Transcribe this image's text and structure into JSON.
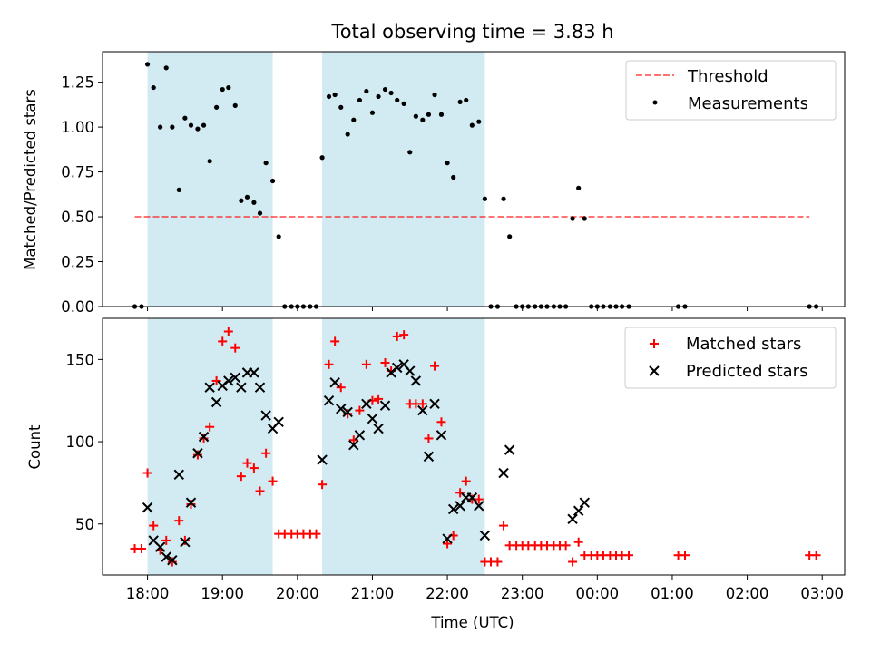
{
  "figure": {
    "title": "Total observing time = 3.83 h",
    "xlabel": "Time (UTC)"
  },
  "colors": {
    "band": "#add8e6",
    "threshold": "#ff0000",
    "measurements": "#000000",
    "matched": "#ff0000",
    "predicted": "#000000"
  },
  "chart_data": [
    {
      "type": "scatter",
      "title": "Total observing time = 3.83 h",
      "xlabel": "",
      "ylabel": "Matched/Predicted stars",
      "x_unit": "hours since 18:00 UTC",
      "xlim": [
        -0.6,
        9.3
      ],
      "ylim": [
        0,
        1.42
      ],
      "xticks": [
        0,
        1,
        2,
        3,
        4,
        5,
        6,
        7,
        8,
        9
      ],
      "xtick_labels": [
        "18:00",
        "19:00",
        "20:00",
        "21:00",
        "22:00",
        "23:00",
        "00:00",
        "01:00",
        "02:00",
        "03:00"
      ],
      "yticks": [
        0,
        0.25,
        0.5,
        0.75,
        1.0,
        1.25
      ],
      "ytick_labels": [
        "0.00",
        "0.25",
        "0.50",
        "0.75",
        "1.00",
        "1.25"
      ],
      "shaded_intervals": [
        [
          0.0,
          1.67
        ],
        [
          2.33,
          4.5
        ]
      ],
      "legend_position": "upper right",
      "grid": false,
      "series": [
        {
          "name": "Threshold",
          "style": "dashed-line",
          "x": [
            -0.17,
            8.83
          ],
          "y": [
            0.5,
            0.5
          ]
        },
        {
          "name": "Measurements",
          "style": "dot",
          "x": [
            -0.17,
            -0.08,
            0.0,
            0.08,
            0.17,
            0.25,
            0.33,
            0.42,
            0.5,
            0.58,
            0.67,
            0.75,
            0.83,
            0.92,
            1.0,
            1.08,
            1.17,
            1.25,
            1.33,
            1.42,
            1.5,
            1.58,
            1.67,
            1.75,
            1.83,
            1.92,
            2.0,
            2.08,
            2.17,
            2.25,
            2.33,
            2.42,
            2.5,
            2.58,
            2.67,
            2.75,
            2.83,
            2.92,
            3.0,
            3.08,
            3.17,
            3.25,
            3.33,
            3.42,
            3.5,
            3.58,
            3.67,
            3.75,
            3.83,
            3.92,
            4.0,
            4.08,
            4.17,
            4.25,
            4.33,
            4.42,
            4.5,
            4.58,
            4.67,
            4.75,
            4.83,
            4.92,
            5.0,
            5.08,
            5.17,
            5.25,
            5.33,
            5.42,
            5.5,
            5.58,
            5.67,
            5.75,
            5.83,
            5.92,
            6.0,
            6.08,
            6.17,
            6.25,
            6.33,
            6.42,
            7.08,
            7.17,
            8.83,
            8.92
          ],
          "y": [
            0.0,
            0.0,
            1.35,
            1.22,
            1.0,
            1.33,
            1.0,
            0.65,
            1.05,
            1.01,
            0.99,
            1.01,
            0.81,
            1.11,
            1.21,
            1.22,
            1.12,
            0.59,
            0.61,
            0.58,
            0.52,
            0.8,
            0.7,
            0.39,
            0.0,
            0.0,
            0.0,
            0.0,
            0.0,
            0.0,
            0.83,
            1.17,
            1.18,
            1.11,
            0.96,
            1.04,
            1.15,
            1.2,
            1.08,
            1.17,
            1.21,
            1.19,
            1.15,
            1.13,
            0.86,
            1.06,
            1.04,
            1.07,
            1.18,
            1.07,
            0.8,
            0.72,
            1.14,
            1.15,
            1.01,
            1.03,
            0.6,
            0.0,
            0.0,
            0.6,
            0.39,
            0.0,
            0.0,
            0.0,
            0.0,
            0.0,
            0.0,
            0.0,
            0.0,
            0.0,
            0.49,
            0.66,
            0.49,
            0.0,
            0.0,
            0.0,
            0.0,
            0.0,
            0.0,
            0.0,
            0.0,
            0.0,
            0.0,
            0.0
          ]
        }
      ]
    },
    {
      "type": "scatter",
      "title": "",
      "xlabel": "Time (UTC)",
      "ylabel": "Count",
      "x_unit": "hours since 18:00 UTC",
      "xlim": [
        -0.6,
        9.3
      ],
      "ylim": [
        19,
        175
      ],
      "xticks": [
        0,
        1,
        2,
        3,
        4,
        5,
        6,
        7,
        8,
        9
      ],
      "xtick_labels": [
        "18:00",
        "19:00",
        "20:00",
        "21:00",
        "22:00",
        "23:00",
        "00:00",
        "01:00",
        "02:00",
        "03:00"
      ],
      "yticks": [
        50,
        100,
        150
      ],
      "ytick_labels": [
        "50",
        "100",
        "150"
      ],
      "shaded_intervals": [
        [
          0.0,
          1.67
        ],
        [
          2.33,
          4.5
        ]
      ],
      "legend_position": "upper right",
      "grid": false,
      "series": [
        {
          "name": "Matched stars",
          "marker": "plus",
          "x": [
            -0.17,
            -0.08,
            0.0,
            0.08,
            0.17,
            0.25,
            0.33,
            0.42,
            0.5,
            0.58,
            0.67,
            0.75,
            0.83,
            0.92,
            1.0,
            1.08,
            1.17,
            1.25,
            1.33,
            1.42,
            1.5,
            1.58,
            1.67,
            1.75,
            1.83,
            1.92,
            2.0,
            2.08,
            2.17,
            2.25,
            2.33,
            2.42,
            2.5,
            2.58,
            2.67,
            2.75,
            2.83,
            2.92,
            3.0,
            3.08,
            3.17,
            3.25,
            3.33,
            3.42,
            3.5,
            3.58,
            3.67,
            3.75,
            3.83,
            3.92,
            4.0,
            4.08,
            4.17,
            4.25,
            4.33,
            4.42,
            4.5,
            4.58,
            4.67,
            4.75,
            4.83,
            4.92,
            5.0,
            5.08,
            5.17,
            5.25,
            5.33,
            5.42,
            5.5,
            5.58,
            5.67,
            5.75,
            5.83,
            5.92,
            6.0,
            6.08,
            6.17,
            6.25,
            6.33,
            6.42,
            7.08,
            7.17,
            8.83,
            8.92
          ],
          "y": [
            35,
            35,
            81,
            49,
            34,
            40,
            27,
            52,
            40,
            62,
            92,
            102,
            109,
            137,
            161,
            167,
            157,
            79,
            87,
            84,
            70,
            93,
            76,
            44,
            44,
            44,
            44,
            44,
            44,
            44,
            74,
            147,
            161,
            133,
            117,
            101,
            119,
            147,
            125,
            126,
            148,
            143,
            164,
            165,
            123,
            123,
            123,
            102,
            146,
            112,
            38,
            43,
            69,
            76,
            65,
            65,
            27,
            27,
            27,
            49,
            37,
            37,
            37,
            37,
            37,
            37,
            37,
            37,
            37,
            37,
            27,
            39,
            31,
            31,
            31,
            31,
            31,
            31,
            31,
            31,
            31,
            31,
            31,
            31
          ]
        },
        {
          "name": "Predicted stars",
          "marker": "x",
          "x": [
            0.0,
            0.08,
            0.17,
            0.25,
            0.33,
            0.42,
            0.5,
            0.58,
            0.67,
            0.75,
            0.83,
            0.92,
            1.0,
            1.08,
            1.17,
            1.25,
            1.33,
            1.42,
            1.5,
            1.58,
            1.67,
            1.75,
            2.33,
            2.42,
            2.5,
            2.58,
            2.67,
            2.75,
            2.83,
            2.92,
            3.0,
            3.08,
            3.17,
            3.25,
            3.33,
            3.42,
            3.5,
            3.58,
            3.67,
            3.75,
            3.83,
            3.92,
            4.0,
            4.08,
            4.17,
            4.25,
            4.33,
            4.42,
            4.5,
            4.75,
            4.83,
            5.67,
            5.75,
            5.83
          ],
          "y": [
            60,
            40,
            36,
            30,
            28,
            80,
            39,
            63,
            93,
            103,
            133,
            124,
            134,
            137,
            139,
            133,
            142,
            142,
            133,
            116,
            108,
            112,
            89,
            125,
            136,
            120,
            118,
            98,
            104,
            123,
            114,
            108,
            122,
            142,
            145,
            147,
            143,
            137,
            119,
            91,
            123,
            104,
            41,
            59,
            61,
            66,
            66,
            61,
            43,
            81,
            95,
            53,
            58,
            63
          ]
        }
      ]
    }
  ]
}
